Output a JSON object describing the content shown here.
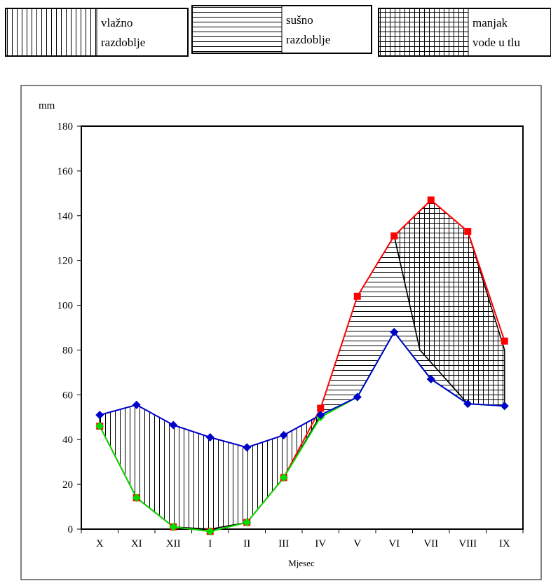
{
  "chart_data": {
    "type": "line",
    "ylabel": "mm",
    "xlabel": "Mjesec",
    "ylim": [
      0,
      180
    ],
    "yticks": [
      0,
      20,
      40,
      60,
      80,
      100,
      120,
      140,
      160,
      180
    ],
    "categories": [
      "X",
      "XI",
      "XII",
      "I",
      "II",
      "III",
      "IV",
      "V",
      "VI",
      "VII",
      "VIII",
      "IX"
    ],
    "grid": false,
    "legend": {
      "placement": "top",
      "entries": [
        {
          "label_lines": [
            "vlažno",
            "razdoblje"
          ],
          "pattern": "vertical-hatch"
        },
        {
          "label_lines": [
            "sušno",
            "razdoblje"
          ],
          "pattern": "horizontal-hatch"
        },
        {
          "label_lines": [
            "manjak",
            "vode u tlu"
          ],
          "pattern": "grid-hatch"
        }
      ]
    },
    "series": [
      {
        "marker": "square",
        "color": "#ff0000",
        "values": [
          46,
          14,
          1,
          -1,
          3,
          23,
          54,
          104,
          131,
          147,
          133,
          84
        ]
      },
      {
        "marker": "diamond",
        "color": "#0000cc",
        "values": [
          51,
          55.5,
          46.5,
          41,
          36.5,
          42,
          51,
          59,
          88,
          67,
          56,
          55
        ]
      },
      {
        "marker": "diamond",
        "color": "#00dd00",
        "values": [
          46,
          14,
          1,
          -1,
          3,
          23,
          50,
          59,
          88,
          67,
          56,
          55
        ]
      }
    ],
    "colors": {
      "series_square": "#ff0000",
      "series_blue": "#0000cc",
      "series_green": "#00dd00",
      "pattern_stroke": "#000000"
    }
  }
}
